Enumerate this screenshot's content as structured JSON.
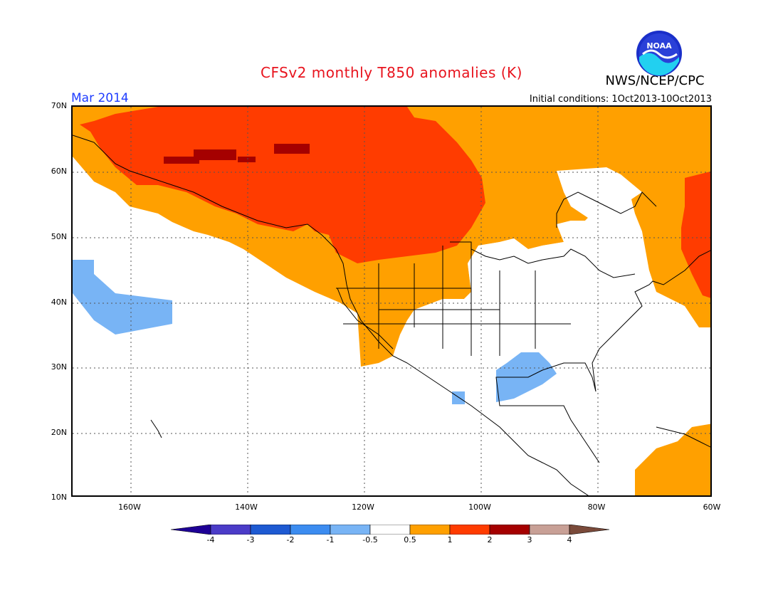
{
  "header": {
    "title": "CFSv2 monthly T850 anomalies (K)",
    "period": "Mar 2014",
    "initial_conditions": "Initial conditions: 1Oct2013-10Oct2013",
    "agency": "NWS/NCEP/CPC",
    "logo_text": "NOAA"
  },
  "axes": {
    "lat_labels": [
      "70N",
      "60N",
      "50N",
      "40N",
      "30N",
      "20N",
      "10N"
    ],
    "lon_labels": [
      "160W",
      "140W",
      "120W",
      "100W",
      "80W",
      "60W"
    ]
  },
  "legend": {
    "labels": [
      "-4",
      "-3",
      "-2",
      "-1",
      "-0.5",
      "0.5",
      "1",
      "2",
      "3",
      "4"
    ],
    "colors": [
      "#1e0096",
      "#4b3cc8",
      "#1e5ad2",
      "#3c8cf0",
      "#78b4f5",
      "#ffffff",
      "#ffa000",
      "#ff3c00",
      "#a50000",
      "#c8a096",
      "#7a4a3a"
    ]
  },
  "map_data": {
    "lon_range": [
      -170,
      -60
    ],
    "lat_range": [
      10,
      70
    ],
    "anomaly_regions": [
      {
        "name": "Alaska-Canada warm anomaly",
        "category": "1 to 2"
      },
      {
        "name": "Western North America warm anomaly",
        "category": "0.5 to 1"
      },
      {
        "name": "Northeast Canada warm anomaly",
        "category": "0.5 to 1"
      },
      {
        "name": "Labrador warm anomaly",
        "category": "1 to 2"
      },
      {
        "name": "Gulf of Mexico cool anomaly",
        "category": "-1 to -0.5"
      },
      {
        "name": "North Pacific cool anomaly",
        "category": "-1 to -0.5"
      },
      {
        "name": "Tropical Atlantic warm anomaly",
        "category": "0.5 to 1"
      }
    ]
  }
}
